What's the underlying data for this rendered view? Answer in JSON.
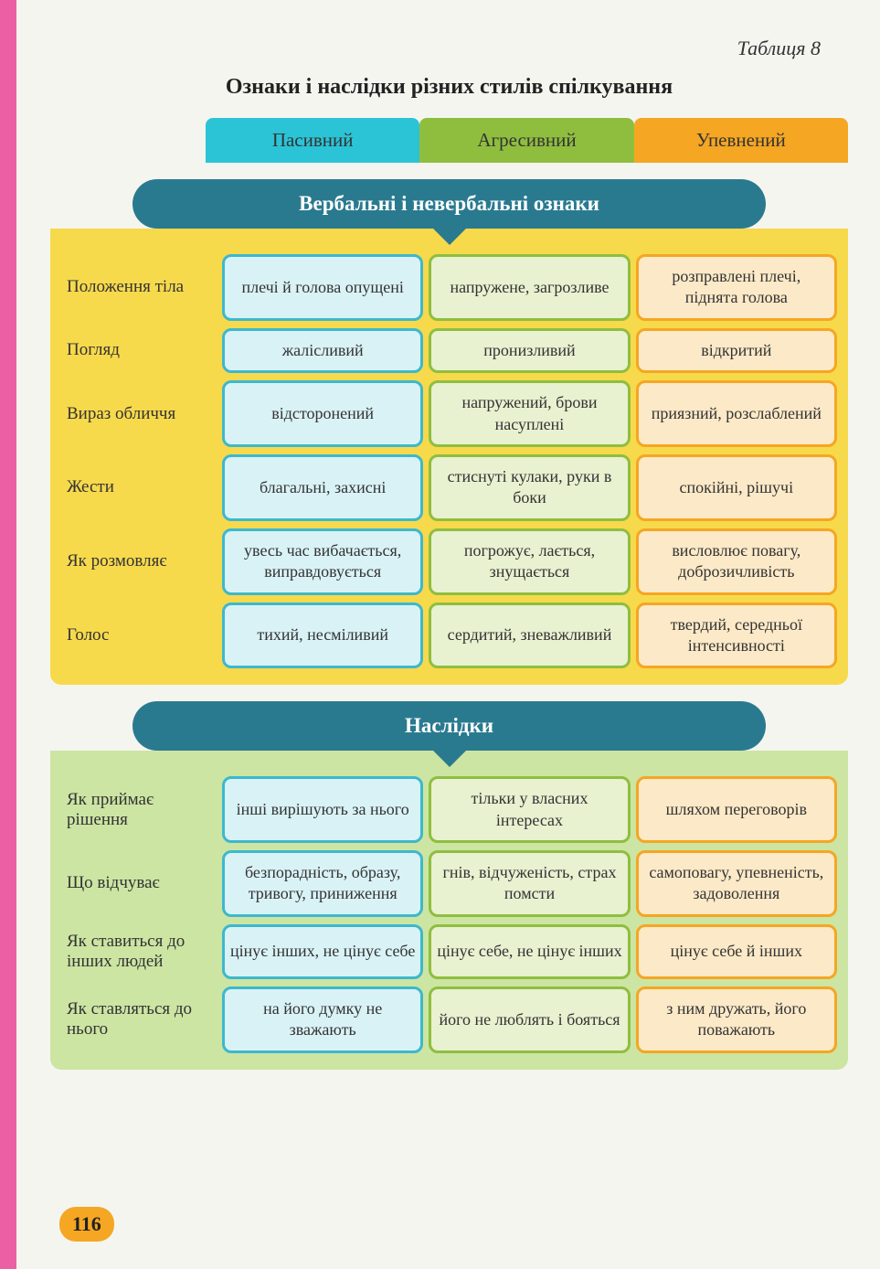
{
  "caption": "Таблиця 8",
  "title": "Ознаки і наслідки різних стилів спілкування",
  "pageNumber": "116",
  "columns": {
    "passive": "Пасивний",
    "aggressive": "Агресивний",
    "confident": "Упевнений"
  },
  "colors": {
    "passive_tab": "#2bc4d6",
    "aggressive_tab": "#8fbe3f",
    "confident_tab": "#f5a623",
    "banner": "#2a7a8f",
    "verbal_bg": "#f7d94c",
    "conseq_bg": "#cce5a3",
    "passive_cell_bg": "#d9f2f6",
    "passive_cell_border": "#3db8cc",
    "aggressive_cell_bg": "#e8f1d0",
    "aggressive_cell_border": "#8fbe3f",
    "confident_cell_bg": "#fce9c7",
    "confident_cell_border": "#f5a623",
    "page_stripe": "#ec5fa5"
  },
  "sections": {
    "verbal": {
      "heading": "Вербальні і невербальні ознаки",
      "rows": [
        {
          "label": "Положення тіла",
          "passive": "плечі й голова опущені",
          "aggressive": "напружене, загрозливе",
          "confident": "розправлені плечі, піднята голова"
        },
        {
          "label": "Погляд",
          "passive": "жалісливий",
          "aggressive": "пронизливий",
          "confident": "відкритий"
        },
        {
          "label": "Вираз обличчя",
          "passive": "відсторонений",
          "aggressive": "напружений, брови насуплені",
          "confident": "приязний, розслаблений"
        },
        {
          "label": "Жести",
          "passive": "благальні, захисні",
          "aggressive": "стиснуті кулаки, руки в боки",
          "confident": "спокійні, рішучі"
        },
        {
          "label": "Як розмовляє",
          "passive": "увесь час вибачається, виправдовується",
          "aggressive": "погрожує, лається, знущається",
          "confident": "висловлює повагу, доброзичливість"
        },
        {
          "label": "Голос",
          "passive": "тихий, несміливий",
          "aggressive": "сердитий, зневажливий",
          "confident": "твердий, середньої інтенсивності"
        }
      ]
    },
    "consequences": {
      "heading": "Наслідки",
      "rows": [
        {
          "label": "Як приймає рішення",
          "passive": "інші вирішують за нього",
          "aggressive": "тільки у власних інтересах",
          "confident": "шляхом переговорів"
        },
        {
          "label": "Що відчуває",
          "passive": "безпорадність, образу, тривогу, приниження",
          "aggressive": "гнів, відчуженість, страх помсти",
          "confident": "самоповагу, упевненість, задоволення"
        },
        {
          "label": "Як ставиться до інших людей",
          "passive": "цінує інших, не цінує себе",
          "aggressive": "цінує себе, не цінує інших",
          "confident": "цінує себе й інших"
        },
        {
          "label": "Як ставляться до нього",
          "passive": "на його думку не зважають",
          "aggressive": "його не люблять і бояться",
          "confident": "з ним дружать, його поважають"
        }
      ]
    }
  }
}
